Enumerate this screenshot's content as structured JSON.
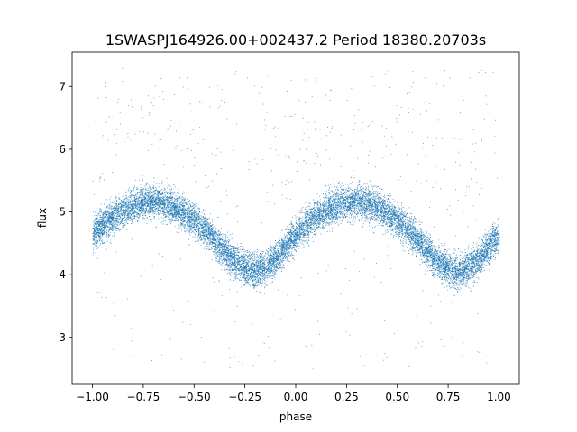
{
  "chart_data": {
    "type": "scatter",
    "title": "1SWASPJ164926.00+002437.2 Period 18380.20703s",
    "xlabel": "phase",
    "ylabel": "flux",
    "xlim": [
      -1.1,
      1.1
    ],
    "ylim": [
      2.25,
      7.55
    ],
    "xticks": [
      -1.0,
      -0.75,
      -0.5,
      -0.25,
      0.0,
      0.25,
      0.5,
      0.75,
      1.0
    ],
    "xtick_labels": [
      "−1.00",
      "−0.75",
      "−0.50",
      "−0.25",
      "0.00",
      "0.25",
      "0.50",
      "0.75",
      "1.00"
    ],
    "yticks": [
      3,
      4,
      5,
      6,
      7
    ],
    "ytick_labels": [
      "3",
      "4",
      "5",
      "6",
      "7"
    ],
    "grid": false,
    "point_color": "#1f77b4",
    "series": [
      {
        "phase_range": [
          -1.0,
          1.0
        ],
        "approx_point_count": 16000,
        "trend": {
          "x": [
            -1.0,
            -0.95,
            -0.9,
            -0.85,
            -0.8,
            -0.75,
            -0.7,
            -0.65,
            -0.6,
            -0.55,
            -0.5,
            -0.45,
            -0.4,
            -0.35,
            -0.3,
            -0.25,
            -0.2,
            -0.15,
            -0.1,
            -0.05,
            0.0,
            0.05,
            0.1,
            0.15,
            0.2,
            0.25,
            0.3,
            0.35,
            0.4,
            0.45,
            0.5,
            0.55,
            0.6,
            0.65,
            0.7,
            0.75,
            0.8,
            0.85,
            0.9,
            0.95,
            1.0
          ],
          "y": [
            4.65,
            4.8,
            4.92,
            5.02,
            5.1,
            5.16,
            5.18,
            5.15,
            5.08,
            4.98,
            4.86,
            4.72,
            4.55,
            4.36,
            4.2,
            4.1,
            4.06,
            4.1,
            4.25,
            4.45,
            4.65,
            4.8,
            4.92,
            5.02,
            5.1,
            5.16,
            5.18,
            5.15,
            5.08,
            4.98,
            4.86,
            4.72,
            4.55,
            4.36,
            4.2,
            4.1,
            4.06,
            4.1,
            4.25,
            4.45,
            4.65
          ]
        },
        "scatter_sigma": 0.13,
        "outliers": {
          "y_range": [
            2.5,
            7.3
          ],
          "approx_count": 500
        }
      }
    ]
  }
}
